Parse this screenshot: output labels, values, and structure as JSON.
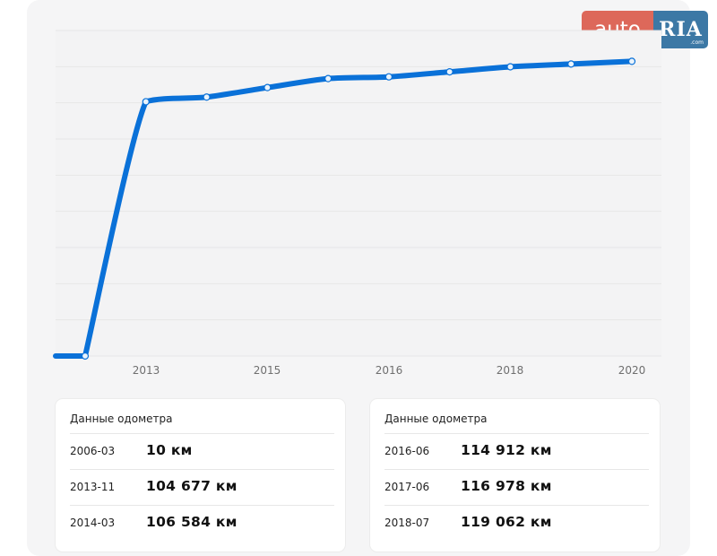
{
  "logo": {
    "auto": "auto",
    "ria": "RIA",
    "ria_sub": ".com"
  },
  "chart_data": {
    "type": "line",
    "x_ticks": [
      "2013",
      "2015",
      "2016",
      "2018",
      "2020"
    ],
    "points": [
      {
        "date": "2006-03",
        "km": 10
      },
      {
        "date": "2013-11",
        "km": 104677
      },
      {
        "date": "2014-03",
        "km": 106584
      },
      {
        "date": "2014-12",
        "km": 110500
      },
      {
        "date": "2015-09",
        "km": 114200
      },
      {
        "date": "2016-06",
        "km": 114912
      },
      {
        "date": "2017-06",
        "km": 116978
      },
      {
        "date": "2018-07",
        "km": 119062
      },
      {
        "date": "2019-06",
        "km": 120200
      },
      {
        "date": "2020-03",
        "km": 121300
      }
    ],
    "line_color": "#0a71d8",
    "grid": true
  },
  "cards": [
    {
      "title": "Данные одометра",
      "rows": [
        {
          "date": "2006-03",
          "value": "10 км"
        },
        {
          "date": "2013-11",
          "value": "104 677 км"
        },
        {
          "date": "2014-03",
          "value": "106 584 км"
        }
      ]
    },
    {
      "title": "Данные одометра",
      "rows": [
        {
          "date": "2016-06",
          "value": "114 912 км"
        },
        {
          "date": "2017-06",
          "value": "116 978 км"
        },
        {
          "date": "2018-07",
          "value": "119 062 км"
        }
      ]
    }
  ]
}
